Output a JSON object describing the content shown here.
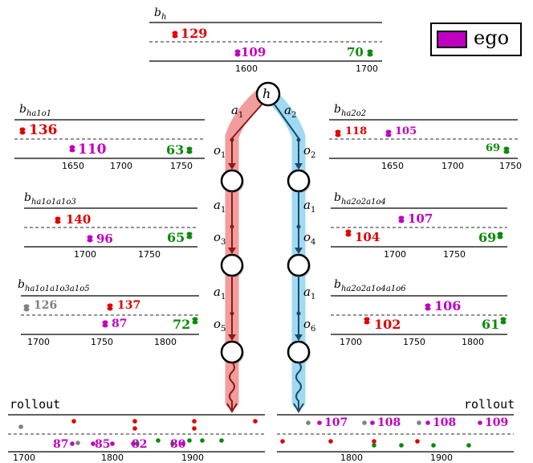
{
  "legend": {
    "label": "ego",
    "color": "#c000c0"
  },
  "colors": {
    "red": "#e00000",
    "purple": "#c000c0",
    "green": "#0a8a0a",
    "gray": "#808080",
    "left_path": "#f08c8c",
    "right_path": "#8fd3f0",
    "left_stroke": "#8b1a1a",
    "right_stroke": "#1a4a6b"
  },
  "root": {
    "label": "h"
  },
  "edges": {
    "left": [
      "a",
      "1"
    ],
    "right": [
      "a",
      "2"
    ]
  },
  "obs": {
    "left": [
      [
        "o",
        "1"
      ],
      [
        "o",
        "3"
      ],
      [
        "o",
        "5"
      ]
    ],
    "right": [
      [
        "o",
        "2"
      ],
      [
        "o",
        "4"
      ],
      [
        "o",
        "6"
      ]
    ]
  },
  "actions": {
    "left": [
      "a",
      "1"
    ],
    "right": [
      "a",
      "1"
    ]
  },
  "beliefs": {
    "b_h": {
      "title": [
        "b",
        "h"
      ],
      "values": {
        "red": "129",
        "purple": "109",
        "green": "70"
      },
      "ticks": [
        "1600",
        "1700"
      ]
    },
    "l1": {
      "title": [
        "b",
        "ha",
        "1",
        "o",
        "1"
      ],
      "values": {
        "red": "136",
        "purple": "110",
        "green": "63"
      },
      "ticks": [
        "1650",
        "1700",
        "1750"
      ]
    },
    "r1": {
      "title": [
        "b",
        "ha",
        "2",
        "o",
        "2"
      ],
      "values": {
        "red": "118",
        "purple": "105",
        "green": "69"
      },
      "ticks": [
        "1650",
        "1700",
        "1750"
      ]
    },
    "l2": {
      "title": [
        "b",
        "ha",
        "1",
        "o",
        "1",
        "a",
        "1",
        "o",
        "3"
      ],
      "values": {
        "red": "140",
        "purple": "96",
        "green": "65"
      },
      "ticks": [
        "1700",
        "1750"
      ]
    },
    "r2": {
      "title": [
        "b",
        "ha",
        "2",
        "o",
        "2",
        "a",
        "1",
        "o",
        "4"
      ],
      "values": {
        "red": "104",
        "purple": "107",
        "green": "69"
      },
      "ticks": [
        "1700",
        "1750"
      ]
    },
    "l3": {
      "title": [
        "b",
        "ha",
        "1",
        "o",
        "1",
        "a",
        "1",
        "o",
        "3",
        "a",
        "1",
        "o",
        "5"
      ],
      "values": {
        "gray": "126",
        "red": "137",
        "purple": "87",
        "green": "72"
      },
      "ticks": [
        "1700",
        "1750",
        "1800"
      ]
    },
    "r3": {
      "title": [
        "b",
        "ha",
        "2",
        "o",
        "2",
        "a",
        "1",
        "o",
        "4",
        "a",
        "1",
        "o",
        "6"
      ],
      "values": {
        "red": "102",
        "purple": "106",
        "green": "61"
      },
      "ticks": [
        "1700",
        "1750",
        "1800"
      ]
    }
  },
  "rollout": {
    "label": "rollout",
    "left": {
      "values": [
        "87",
        "85",
        "82",
        "80"
      ],
      "ticks": [
        "1700",
        "1800",
        "1900"
      ]
    },
    "right": {
      "values": [
        "107",
        "108",
        "108",
        "109"
      ],
      "ticks": [
        "1800",
        "1900"
      ]
    }
  }
}
